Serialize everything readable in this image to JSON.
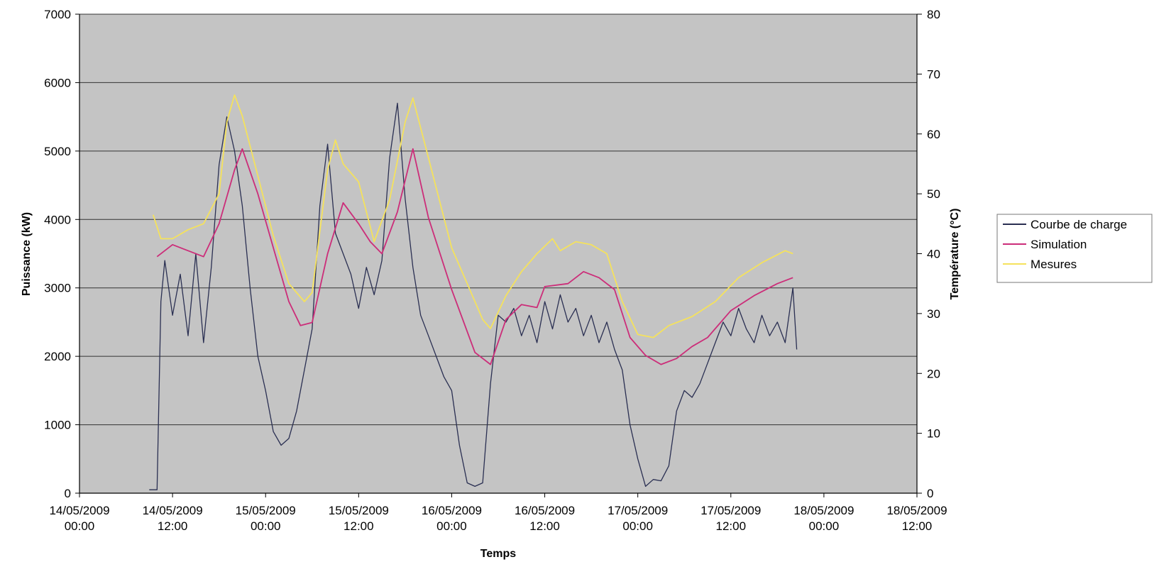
{
  "chart_data": {
    "type": "line",
    "title": "",
    "xlabel": "Temps",
    "ylabel": "Puissance (kW)",
    "y2label": "Température (°C)",
    "ylim": [
      0,
      7000
    ],
    "y2lim": [
      0,
      80
    ],
    "xlim": [
      "14/05/2009 00:00",
      "18/05/2009 12:00"
    ],
    "x_ticks": [
      {
        "date": "14/05/2009",
        "time": "00:00"
      },
      {
        "date": "14/05/2009",
        "time": "12:00"
      },
      {
        "date": "15/05/2009",
        "time": "00:00"
      },
      {
        "date": "15/05/2009",
        "time": "12:00"
      },
      {
        "date": "16/05/2009",
        "time": "00:00"
      },
      {
        "date": "16/05/2009",
        "time": "12:00"
      },
      {
        "date": "17/05/2009",
        "time": "00:00"
      },
      {
        "date": "17/05/2009",
        "time": "12:00"
      },
      {
        "date": "18/05/2009",
        "time": "00:00"
      },
      {
        "date": "18/05/2009",
        "time": "12:00"
      }
    ],
    "y_ticks": [
      0,
      1000,
      2000,
      3000,
      4000,
      5000,
      6000,
      7000
    ],
    "y2_ticks": [
      0,
      10,
      20,
      30,
      40,
      50,
      60,
      70,
      80
    ],
    "grid": true,
    "legend_position": "right",
    "series": [
      {
        "name": "Courbe de charge",
        "axis": "left",
        "color": "#2a2f52",
        "points": [
          [
            "14/05/2009 09:00",
            50
          ],
          [
            "14/05/2009 10:00",
            50
          ],
          [
            "14/05/2009 10:30",
            2800
          ],
          [
            "14/05/2009 11:00",
            3400
          ],
          [
            "14/05/2009 12:00",
            2600
          ],
          [
            "14/05/2009 13:00",
            3200
          ],
          [
            "14/05/2009 14:00",
            2300
          ],
          [
            "14/05/2009 15:00",
            3500
          ],
          [
            "14/05/2009 16:00",
            2200
          ],
          [
            "14/05/2009 17:00",
            3300
          ],
          [
            "14/05/2009 18:00",
            4800
          ],
          [
            "14/05/2009 19:00",
            5500
          ],
          [
            "14/05/2009 20:00",
            5000
          ],
          [
            "14/05/2009 21:00",
            4200
          ],
          [
            "14/05/2009 22:00",
            3000
          ],
          [
            "14/05/2009 23:00",
            2000
          ],
          [
            "15/05/2009 00:00",
            1500
          ],
          [
            "15/05/2009 01:00",
            900
          ],
          [
            "15/05/2009 02:00",
            700
          ],
          [
            "15/05/2009 03:00",
            800
          ],
          [
            "15/05/2009 04:00",
            1200
          ],
          [
            "15/05/2009 05:00",
            1800
          ],
          [
            "15/05/2009 06:00",
            2400
          ],
          [
            "15/05/2009 07:00",
            4200
          ],
          [
            "15/05/2009 08:00",
            5100
          ],
          [
            "15/05/2009 09:00",
            3800
          ],
          [
            "15/05/2009 10:00",
            3500
          ],
          [
            "15/05/2009 11:00",
            3200
          ],
          [
            "15/05/2009 12:00",
            2700
          ],
          [
            "15/05/2009 13:00",
            3300
          ],
          [
            "15/05/2009 14:00",
            2900
          ],
          [
            "15/05/2009 15:00",
            3400
          ],
          [
            "15/05/2009 16:00",
            4900
          ],
          [
            "15/05/2009 17:00",
            5700
          ],
          [
            "15/05/2009 18:00",
            4300
          ],
          [
            "15/05/2009 19:00",
            3300
          ],
          [
            "15/05/2009 20:00",
            2600
          ],
          [
            "15/05/2009 21:00",
            2300
          ],
          [
            "15/05/2009 22:00",
            2000
          ],
          [
            "15/05/2009 23:00",
            1700
          ],
          [
            "16/05/2009 00:00",
            1500
          ],
          [
            "16/05/2009 01:00",
            700
          ],
          [
            "16/05/2009 02:00",
            150
          ],
          [
            "16/05/2009 03:00",
            100
          ],
          [
            "16/05/2009 04:00",
            150
          ],
          [
            "16/05/2009 05:00",
            1600
          ],
          [
            "16/05/2009 06:00",
            2600
          ],
          [
            "16/05/2009 07:00",
            2500
          ],
          [
            "16/05/2009 08:00",
            2700
          ],
          [
            "16/05/2009 09:00",
            2300
          ],
          [
            "16/05/2009 10:00",
            2600
          ],
          [
            "16/05/2009 11:00",
            2200
          ],
          [
            "16/05/2009 12:00",
            2800
          ],
          [
            "16/05/2009 13:00",
            2400
          ],
          [
            "16/05/2009 14:00",
            2900
          ],
          [
            "16/05/2009 15:00",
            2500
          ],
          [
            "16/05/2009 16:00",
            2700
          ],
          [
            "16/05/2009 17:00",
            2300
          ],
          [
            "16/05/2009 18:00",
            2600
          ],
          [
            "16/05/2009 19:00",
            2200
          ],
          [
            "16/05/2009 20:00",
            2500
          ],
          [
            "16/05/2009 21:00",
            2100
          ],
          [
            "16/05/2009 22:00",
            1800
          ],
          [
            "16/05/2009 23:00",
            1000
          ],
          [
            "17/05/2009 00:00",
            500
          ],
          [
            "17/05/2009 01:00",
            100
          ],
          [
            "17/05/2009 02:00",
            200
          ],
          [
            "17/05/2009 03:00",
            180
          ],
          [
            "17/05/2009 04:00",
            400
          ],
          [
            "17/05/2009 05:00",
            1200
          ],
          [
            "17/05/2009 06:00",
            1500
          ],
          [
            "17/05/2009 07:00",
            1400
          ],
          [
            "17/05/2009 08:00",
            1600
          ],
          [
            "17/05/2009 09:00",
            1900
          ],
          [
            "17/05/2009 10:00",
            2200
          ],
          [
            "17/05/2009 11:00",
            2500
          ],
          [
            "17/05/2009 12:00",
            2300
          ],
          [
            "17/05/2009 13:00",
            2700
          ],
          [
            "17/05/2009 14:00",
            2400
          ],
          [
            "17/05/2009 15:00",
            2200
          ],
          [
            "17/05/2009 16:00",
            2600
          ],
          [
            "17/05/2009 17:00",
            2300
          ],
          [
            "17/05/2009 18:00",
            2500
          ],
          [
            "17/05/2009 19:00",
            2200
          ],
          [
            "17/05/2009 20:00",
            3000
          ],
          [
            "17/05/2009 20:30",
            2100
          ]
        ]
      },
      {
        "name": "Simulation",
        "axis": "right",
        "color": "#cc2d79",
        "points": [
          [
            "14/05/2009 10:00",
            39.5
          ],
          [
            "14/05/2009 12:00",
            41.5
          ],
          [
            "14/05/2009 14:00",
            40.5
          ],
          [
            "14/05/2009 16:00",
            39.5
          ],
          [
            "14/05/2009 18:00",
            45
          ],
          [
            "14/05/2009 20:00",
            54
          ],
          [
            "14/05/2009 21:00",
            57.5
          ],
          [
            "14/05/2009 23:00",
            50
          ],
          [
            "15/05/2009 01:00",
            41
          ],
          [
            "15/05/2009 03:00",
            32
          ],
          [
            "15/05/2009 04:30",
            28
          ],
          [
            "15/05/2009 06:00",
            28.5
          ],
          [
            "15/05/2009 08:00",
            40
          ],
          [
            "15/05/2009 10:00",
            48.5
          ],
          [
            "15/05/2009 12:00",
            45
          ],
          [
            "15/05/2009 13:30",
            42
          ],
          [
            "15/05/2009 15:00",
            40
          ],
          [
            "15/05/2009 17:00",
            47
          ],
          [
            "15/05/2009 19:00",
            57.5
          ],
          [
            "15/05/2009 21:00",
            46
          ],
          [
            "16/05/2009 00:00",
            34
          ],
          [
            "16/05/2009 03:00",
            23.5
          ],
          [
            "16/05/2009 05:00",
            21.5
          ],
          [
            "16/05/2009 07:00",
            29
          ],
          [
            "16/05/2009 09:00",
            31.5
          ],
          [
            "16/05/2009 11:00",
            31
          ],
          [
            "16/05/2009 12:00",
            34.5
          ],
          [
            "16/05/2009 15:00",
            35
          ],
          [
            "16/05/2009 17:00",
            37
          ],
          [
            "16/05/2009 19:00",
            36
          ],
          [
            "16/05/2009 21:00",
            34
          ],
          [
            "16/05/2009 23:00",
            26
          ],
          [
            "17/05/2009 01:00",
            23
          ],
          [
            "17/05/2009 03:00",
            21.5
          ],
          [
            "17/05/2009 05:00",
            22.5
          ],
          [
            "17/05/2009 07:00",
            24.5
          ],
          [
            "17/05/2009 09:00",
            26
          ],
          [
            "17/05/2009 12:00",
            30.5
          ],
          [
            "17/05/2009 15:00",
            33
          ],
          [
            "17/05/2009 18:00",
            35
          ],
          [
            "17/05/2009 20:00",
            36
          ]
        ]
      },
      {
        "name": "Mesures",
        "axis": "right",
        "color": "#f5e25c",
        "points": [
          [
            "14/05/2009 09:30",
            46.5
          ],
          [
            "14/05/2009 10:30",
            42.5
          ],
          [
            "14/05/2009 12:00",
            42.5
          ],
          [
            "14/05/2009 14:00",
            44
          ],
          [
            "14/05/2009 16:00",
            45
          ],
          [
            "14/05/2009 18:00",
            50
          ],
          [
            "14/05/2009 19:00",
            62
          ],
          [
            "14/05/2009 20:00",
            66.5
          ],
          [
            "14/05/2009 21:00",
            63
          ],
          [
            "14/05/2009 23:00",
            53
          ],
          [
            "15/05/2009 01:00",
            43
          ],
          [
            "15/05/2009 03:00",
            35
          ],
          [
            "15/05/2009 05:00",
            32
          ],
          [
            "15/05/2009 06:00",
            33.5
          ],
          [
            "15/05/2009 08:00",
            54
          ],
          [
            "15/05/2009 09:00",
            59
          ],
          [
            "15/05/2009 10:00",
            55
          ],
          [
            "15/05/2009 12:00",
            52
          ],
          [
            "15/05/2009 14:00",
            42
          ],
          [
            "15/05/2009 16:00",
            49
          ],
          [
            "15/05/2009 18:00",
            62
          ],
          [
            "15/05/2009 19:00",
            66
          ],
          [
            "15/05/2009 21:00",
            56
          ],
          [
            "16/05/2009 00:00",
            41
          ],
          [
            "16/05/2009 02:00",
            35
          ],
          [
            "16/05/2009 04:00",
            29
          ],
          [
            "16/05/2009 05:00",
            27.5
          ],
          [
            "16/05/2009 07:00",
            33
          ],
          [
            "16/05/2009 09:00",
            37
          ],
          [
            "16/05/2009 11:00",
            40
          ],
          [
            "16/05/2009 13:00",
            42.5
          ],
          [
            "16/05/2009 14:00",
            40.5
          ],
          [
            "16/05/2009 16:00",
            42
          ],
          [
            "16/05/2009 18:00",
            41.5
          ],
          [
            "16/05/2009 20:00",
            40
          ],
          [
            "16/05/2009 22:00",
            32
          ],
          [
            "17/05/2009 00:00",
            26.5
          ],
          [
            "17/05/2009 02:00",
            26
          ],
          [
            "17/05/2009 04:00",
            28
          ],
          [
            "17/05/2009 07:00",
            29.5
          ],
          [
            "17/05/2009 10:00",
            32
          ],
          [
            "17/05/2009 13:00",
            36
          ],
          [
            "17/05/2009 16:00",
            38.5
          ],
          [
            "17/05/2009 19:00",
            40.5
          ],
          [
            "17/05/2009 20:00",
            40
          ]
        ]
      }
    ]
  }
}
